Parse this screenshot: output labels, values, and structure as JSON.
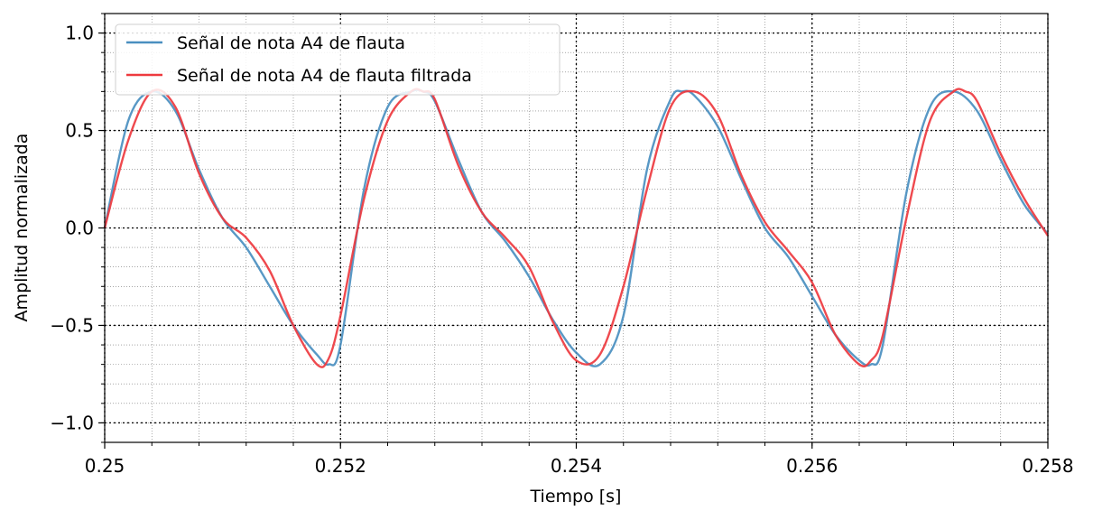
{
  "chart_data": {
    "type": "line",
    "title": "",
    "xlabel": "Tiempo [s]",
    "ylabel": "Amplitud normalizada",
    "xlim": [
      0.25,
      0.258
    ],
    "ylim": [
      -1.1,
      1.1
    ],
    "xticks": [
      0.25,
      0.252,
      0.254,
      0.256,
      0.258
    ],
    "xtick_labels": [
      "0.25",
      "0.252",
      "0.254",
      "0.256",
      "0.258"
    ],
    "yticks": [
      -1.0,
      -0.5,
      0.0,
      0.5,
      1.0
    ],
    "ytick_labels": [
      "−1.0",
      "−0.5",
      "0.0",
      "0.5",
      "1.0"
    ],
    "grid": true,
    "minor_grid": true,
    "legend_position": "top-left",
    "series": [
      {
        "name": "Señal de nota A4 de flauta",
        "color": "#4a8fc0",
        "x": [
          0.25,
          0.2502,
          0.2504,
          0.2506,
          0.2508,
          0.251,
          0.2512,
          0.2514,
          0.2516,
          0.2518,
          0.2519,
          0.252,
          0.2522,
          0.2524,
          0.2526,
          0.2527,
          0.2528,
          0.253,
          0.2532,
          0.2534,
          0.2536,
          0.2538,
          0.254,
          0.2542,
          0.2544,
          0.2546,
          0.2548,
          0.2549,
          0.255,
          0.2552,
          0.2554,
          0.2556,
          0.2558,
          0.256,
          0.2562,
          0.2564,
          0.2565,
          0.2566,
          0.2568,
          0.257,
          0.2572,
          0.2574,
          0.2576,
          0.2578,
          0.258
        ],
        "y": [
          0.0,
          0.55,
          0.7,
          0.6,
          0.3,
          0.05,
          -0.1,
          -0.3,
          -0.5,
          -0.65,
          -0.7,
          -0.6,
          0.2,
          0.62,
          0.7,
          0.7,
          0.65,
          0.35,
          0.08,
          -0.07,
          -0.25,
          -0.47,
          -0.64,
          -0.7,
          -0.45,
          0.3,
          0.66,
          0.7,
          0.68,
          0.52,
          0.25,
          0.0,
          -0.15,
          -0.35,
          -0.55,
          -0.68,
          -0.7,
          -0.6,
          0.18,
          0.62,
          0.7,
          0.6,
          0.35,
          0.12,
          -0.03
        ]
      },
      {
        "name": "Señal de nota A4 de flauta filtrada",
        "color": "#ee3a3f",
        "x": [
          0.25,
          0.2502,
          0.2504,
          0.2506,
          0.2508,
          0.251,
          0.2512,
          0.2514,
          0.2516,
          0.2518,
          0.2519,
          0.252,
          0.2522,
          0.2524,
          0.2526,
          0.2527,
          0.2528,
          0.253,
          0.2532,
          0.2534,
          0.2536,
          0.2538,
          0.254,
          0.2542,
          0.2544,
          0.2546,
          0.2548,
          0.255,
          0.2552,
          0.2554,
          0.2556,
          0.2558,
          0.256,
          0.2562,
          0.2564,
          0.2565,
          0.2566,
          0.2568,
          0.257,
          0.2572,
          0.2573,
          0.2574,
          0.2576,
          0.2578,
          0.258
        ],
        "y": [
          0.0,
          0.45,
          0.7,
          0.62,
          0.28,
          0.05,
          -0.05,
          -0.22,
          -0.5,
          -0.7,
          -0.67,
          -0.45,
          0.15,
          0.55,
          0.7,
          0.7,
          0.66,
          0.32,
          0.08,
          -0.05,
          -0.2,
          -0.48,
          -0.68,
          -0.65,
          -0.3,
          0.2,
          0.62,
          0.7,
          0.58,
          0.27,
          0.03,
          -0.12,
          -0.28,
          -0.55,
          -0.7,
          -0.68,
          -0.55,
          0.05,
          0.55,
          0.7,
          0.7,
          0.65,
          0.38,
          0.15,
          -0.04
        ]
      }
    ]
  }
}
